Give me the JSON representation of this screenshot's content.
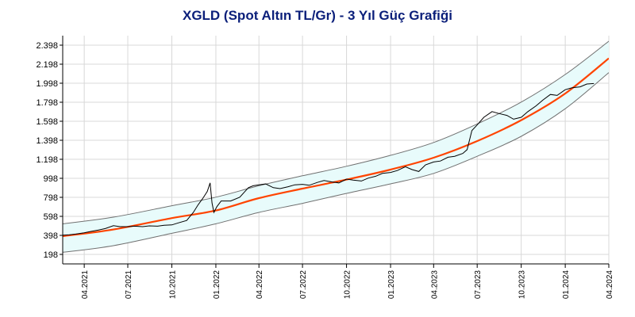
{
  "chart_data": {
    "type": "line",
    "title": "XGLD (Spot Altın TL/Gr) - 3 Yıl Güç Grafiği",
    "xlabel": "",
    "ylabel": "",
    "x_range": [
      "2021-02-15",
      "2024-04-01"
    ],
    "ylim": [
      98,
      2498
    ],
    "y_ticks": [
      "198",
      "398",
      "598",
      "798",
      "998",
      "1.198",
      "1.398",
      "1.598",
      "1.798",
      "1.998",
      "2.198",
      "2.398"
    ],
    "x_ticks": [
      {
        "date": "2021-04-01",
        "label": "04.2021"
      },
      {
        "date": "2021-07-01",
        "label": "07.2021"
      },
      {
        "date": "2021-10-01",
        "label": "10.2021"
      },
      {
        "date": "2022-01-01",
        "label": "01.2022"
      },
      {
        "date": "2022-04-01",
        "label": "04.2022"
      },
      {
        "date": "2022-07-01",
        "label": "07.2022"
      },
      {
        "date": "2022-10-01",
        "label": "10.2022"
      },
      {
        "date": "2023-01-01",
        "label": "01.2023"
      },
      {
        "date": "2023-04-01",
        "label": "04.2023"
      },
      {
        "date": "2023-07-01",
        "label": "07.2023"
      },
      {
        "date": "2023-10-01",
        "label": "10.2023"
      },
      {
        "date": "2024-01-01",
        "label": "01.2024"
      },
      {
        "date": "2024-04-01",
        "label": "04.2024"
      }
    ],
    "grid": true,
    "colors": {
      "price": "#000000",
      "trend": "#ff4400",
      "band_line": "#707070",
      "band_fill": "#e8fbfb",
      "grid": "#d8d8d8",
      "title": "#0b1f7a"
    },
    "series": [
      {
        "role": "price",
        "points": [
          {
            "x": "2021-02-15",
            "y": 400
          },
          {
            "x": "2021-03-01",
            "y": 405
          },
          {
            "x": "2021-03-15",
            "y": 412
          },
          {
            "x": "2021-04-01",
            "y": 425
          },
          {
            "x": "2021-04-15",
            "y": 440
          },
          {
            "x": "2021-05-01",
            "y": 455
          },
          {
            "x": "2021-05-15",
            "y": 470
          },
          {
            "x": "2021-06-01",
            "y": 500
          },
          {
            "x": "2021-06-15",
            "y": 490
          },
          {
            "x": "2021-07-01",
            "y": 490
          },
          {
            "x": "2021-07-15",
            "y": 495
          },
          {
            "x": "2021-08-01",
            "y": 490
          },
          {
            "x": "2021-08-15",
            "y": 498
          },
          {
            "x": "2021-09-01",
            "y": 495
          },
          {
            "x": "2021-09-15",
            "y": 505
          },
          {
            "x": "2021-10-01",
            "y": 508
          },
          {
            "x": "2021-10-15",
            "y": 530
          },
          {
            "x": "2021-11-01",
            "y": 555
          },
          {
            "x": "2021-11-15",
            "y": 640
          },
          {
            "x": "2021-11-25",
            "y": 720
          },
          {
            "x": "2021-12-05",
            "y": 790
          },
          {
            "x": "2021-12-14",
            "y": 860
          },
          {
            "x": "2021-12-20",
            "y": 950
          },
          {
            "x": "2021-12-24",
            "y": 740
          },
          {
            "x": "2021-12-28",
            "y": 640
          },
          {
            "x": "2022-01-03",
            "y": 700
          },
          {
            "x": "2022-01-12",
            "y": 760
          },
          {
            "x": "2022-02-01",
            "y": 760
          },
          {
            "x": "2022-02-20",
            "y": 800
          },
          {
            "x": "2022-03-01",
            "y": 850
          },
          {
            "x": "2022-03-10",
            "y": 900
          },
          {
            "x": "2022-03-20",
            "y": 920
          },
          {
            "x": "2022-04-01",
            "y": 930
          },
          {
            "x": "2022-04-15",
            "y": 940
          },
          {
            "x": "2022-05-01",
            "y": 900
          },
          {
            "x": "2022-05-15",
            "y": 890
          },
          {
            "x": "2022-06-01",
            "y": 910
          },
          {
            "x": "2022-06-15",
            "y": 930
          },
          {
            "x": "2022-07-01",
            "y": 935
          },
          {
            "x": "2022-07-15",
            "y": 925
          },
          {
            "x": "2022-08-01",
            "y": 955
          },
          {
            "x": "2022-08-15",
            "y": 975
          },
          {
            "x": "2022-09-01",
            "y": 960
          },
          {
            "x": "2022-09-15",
            "y": 950
          },
          {
            "x": "2022-10-01",
            "y": 990
          },
          {
            "x": "2022-10-15",
            "y": 980
          },
          {
            "x": "2022-11-01",
            "y": 970
          },
          {
            "x": "2022-11-15",
            "y": 1000
          },
          {
            "x": "2022-12-01",
            "y": 1020
          },
          {
            "x": "2022-12-15",
            "y": 1050
          },
          {
            "x": "2023-01-01",
            "y": 1060
          },
          {
            "x": "2023-01-15",
            "y": 1080
          },
          {
            "x": "2023-02-01",
            "y": 1120
          },
          {
            "x": "2023-02-15",
            "y": 1090
          },
          {
            "x": "2023-03-01",
            "y": 1070
          },
          {
            "x": "2023-03-15",
            "y": 1140
          },
          {
            "x": "2023-04-01",
            "y": 1170
          },
          {
            "x": "2023-04-15",
            "y": 1180
          },
          {
            "x": "2023-05-01",
            "y": 1220
          },
          {
            "x": "2023-05-15",
            "y": 1230
          },
          {
            "x": "2023-06-01",
            "y": 1260
          },
          {
            "x": "2023-06-10",
            "y": 1300
          },
          {
            "x": "2023-06-20",
            "y": 1500
          },
          {
            "x": "2023-07-01",
            "y": 1560
          },
          {
            "x": "2023-07-15",
            "y": 1640
          },
          {
            "x": "2023-08-01",
            "y": 1700
          },
          {
            "x": "2023-08-15",
            "y": 1680
          },
          {
            "x": "2023-09-01",
            "y": 1660
          },
          {
            "x": "2023-09-15",
            "y": 1620
          },
          {
            "x": "2023-10-01",
            "y": 1640
          },
          {
            "x": "2023-10-15",
            "y": 1700
          },
          {
            "x": "2023-11-01",
            "y": 1760
          },
          {
            "x": "2023-11-15",
            "y": 1820
          },
          {
            "x": "2023-12-01",
            "y": 1880
          },
          {
            "x": "2023-12-15",
            "y": 1870
          },
          {
            "x": "2024-01-01",
            "y": 1930
          },
          {
            "x": "2024-01-15",
            "y": 1950
          },
          {
            "x": "2024-02-01",
            "y": 1960
          },
          {
            "x": "2024-02-15",
            "y": 1990
          },
          {
            "x": "2024-03-01",
            "y": 1995
          }
        ]
      },
      {
        "role": "trend",
        "points": [
          {
            "x": "2021-02-15",
            "y": 390
          },
          {
            "x": "2021-06-01",
            "y": 460
          },
          {
            "x": "2021-10-01",
            "y": 580
          },
          {
            "x": "2022-01-01",
            "y": 660
          },
          {
            "x": "2022-04-01",
            "y": 790
          },
          {
            "x": "2022-07-01",
            "y": 890
          },
          {
            "x": "2022-10-01",
            "y": 985
          },
          {
            "x": "2023-01-01",
            "y": 1090
          },
          {
            "x": "2023-04-01",
            "y": 1215
          },
          {
            "x": "2023-07-01",
            "y": 1390
          },
          {
            "x": "2023-10-01",
            "y": 1610
          },
          {
            "x": "2024-01-01",
            "y": 1890
          },
          {
            "x": "2024-04-01",
            "y": 2260
          }
        ]
      },
      {
        "role": "upper-band",
        "points": [
          {
            "x": "2021-02-15",
            "y": 520
          },
          {
            "x": "2021-06-01",
            "y": 590
          },
          {
            "x": "2021-10-01",
            "y": 710
          },
          {
            "x": "2022-01-01",
            "y": 800
          },
          {
            "x": "2022-04-01",
            "y": 920
          },
          {
            "x": "2022-07-01",
            "y": 1025
          },
          {
            "x": "2022-10-01",
            "y": 1125
          },
          {
            "x": "2023-01-01",
            "y": 1240
          },
          {
            "x": "2023-04-01",
            "y": 1375
          },
          {
            "x": "2023-07-01",
            "y": 1570
          },
          {
            "x": "2023-10-01",
            "y": 1800
          },
          {
            "x": "2024-01-01",
            "y": 2090
          },
          {
            "x": "2024-04-01",
            "y": 2440
          }
        ]
      },
      {
        "role": "lower-band",
        "points": [
          {
            "x": "2021-02-15",
            "y": 220
          },
          {
            "x": "2021-06-01",
            "y": 290
          },
          {
            "x": "2021-10-01",
            "y": 420
          },
          {
            "x": "2022-01-01",
            "y": 520
          },
          {
            "x": "2022-04-01",
            "y": 640
          },
          {
            "x": "2022-07-01",
            "y": 735
          },
          {
            "x": "2022-10-01",
            "y": 840
          },
          {
            "x": "2023-01-01",
            "y": 940
          },
          {
            "x": "2023-04-01",
            "y": 1050
          },
          {
            "x": "2023-07-01",
            "y": 1230
          },
          {
            "x": "2023-10-01",
            "y": 1440
          },
          {
            "x": "2024-01-01",
            "y": 1730
          },
          {
            "x": "2024-04-01",
            "y": 2110
          }
        ]
      }
    ]
  }
}
